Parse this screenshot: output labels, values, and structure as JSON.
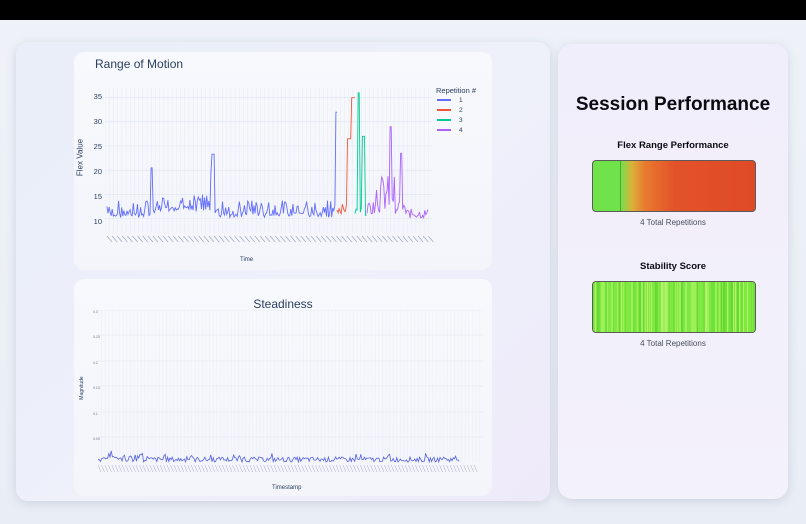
{
  "range_chart": {
    "title": "Range of Motion",
    "ylabel": "Flex Value",
    "xlabel": "Time",
    "legend_title": "Repetition #",
    "chart_data": {
      "type": "line",
      "ylim": [
        7,
        37
      ],
      "yticks": [
        "10",
        "15",
        "20",
        "25",
        "30",
        "35"
      ],
      "series": [
        {
          "name": "1",
          "color": "#636efa"
        },
        {
          "name": "2",
          "color": "#ef553b"
        },
        {
          "name": "3",
          "color": "#00cc96"
        },
        {
          "name": "4",
          "color": "#ab63fa"
        }
      ]
    }
  },
  "steady_chart": {
    "title": "Steadiness",
    "ylabel": "Magnitude",
    "xlabel": "Timestamp",
    "chart_data": {
      "type": "line",
      "yticks": [
        "0.05",
        "0.1",
        "0.15",
        "0.2",
        "0.25",
        "0.3"
      ]
    }
  },
  "performance": {
    "title": "Session Performance",
    "flex_title": "Flex Range Performance",
    "flex_sub": "4 Total Repetitions",
    "stability_title": "Stability Score",
    "stability_sub": "4 Total Repetitions",
    "colors": {
      "good": "#71e34a",
      "bad": "#de4a26"
    }
  }
}
